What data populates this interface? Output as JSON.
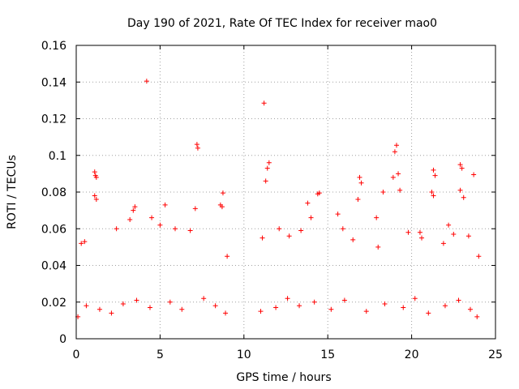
{
  "chart_data": {
    "type": "scatter",
    "title": "Day 190 of 2021, Rate Of TEC Index for receiver mao0",
    "xlabel": "GPS time / hours",
    "ylabel": "ROTI / TECUs",
    "xlim": [
      0,
      25
    ],
    "ylim": [
      0,
      0.16
    ],
    "xticks": [
      0,
      5,
      10,
      15,
      20,
      25
    ],
    "yticks": [
      0,
      0.02,
      0.04,
      0.06,
      0.08,
      0.1,
      0.12,
      0.14,
      0.16
    ],
    "xtick_labels": [
      "0",
      "5",
      "10",
      "15",
      "20",
      "25"
    ],
    "ytick_labels": [
      "0",
      "0.02",
      "0.04",
      "0.06",
      "0.08",
      "0.1",
      "0.12",
      "0.14",
      "0.16"
    ],
    "grid": true,
    "marker": "+",
    "color": "#ff0000",
    "series": [
      {
        "name": "ROTI",
        "points": [
          [
            4.2,
            0.1405
          ],
          [
            11.2,
            0.1285
          ],
          [
            7.2,
            0.106
          ],
          [
            7.25,
            0.104
          ],
          [
            19.1,
            0.1055
          ],
          [
            19.0,
            0.102
          ],
          [
            1.1,
            0.091
          ],
          [
            1.15,
            0.089
          ],
          [
            1.2,
            0.088
          ],
          [
            11.5,
            0.096
          ],
          [
            11.4,
            0.093
          ],
          [
            11.3,
            0.086
          ],
          [
            16.9,
            0.088
          ],
          [
            17.0,
            0.085
          ],
          [
            21.3,
            0.092
          ],
          [
            21.4,
            0.089
          ],
          [
            22.9,
            0.095
          ],
          [
            23.0,
            0.093
          ],
          [
            23.7,
            0.0895
          ],
          [
            18.9,
            0.088
          ],
          [
            19.2,
            0.09
          ],
          [
            14.5,
            0.0795
          ],
          [
            14.4,
            0.079
          ],
          [
            8.75,
            0.0795
          ],
          [
            1.1,
            0.078
          ],
          [
            1.2,
            0.076
          ],
          [
            5.3,
            0.073
          ],
          [
            3.5,
            0.072
          ],
          [
            3.4,
            0.07
          ],
          [
            7.1,
            0.071
          ],
          [
            8.6,
            0.073
          ],
          [
            8.7,
            0.072
          ],
          [
            13.8,
            0.074
          ],
          [
            16.8,
            0.076
          ],
          [
            18.3,
            0.08
          ],
          [
            19.3,
            0.081
          ],
          [
            21.2,
            0.08
          ],
          [
            21.3,
            0.078
          ],
          [
            22.9,
            0.081
          ],
          [
            23.1,
            0.077
          ],
          [
            15.6,
            0.068
          ],
          [
            17.9,
            0.066
          ],
          [
            20.5,
            0.058
          ],
          [
            22.2,
            0.062
          ],
          [
            24.0,
            0.045
          ],
          [
            0.3,
            0.052
          ],
          [
            0.5,
            0.053
          ],
          [
            2.4,
            0.06
          ],
          [
            3.2,
            0.065
          ],
          [
            4.5,
            0.066
          ],
          [
            5.0,
            0.062
          ],
          [
            5.9,
            0.06
          ],
          [
            6.8,
            0.059
          ],
          [
            9.0,
            0.045
          ],
          [
            11.1,
            0.055
          ],
          [
            12.1,
            0.06
          ],
          [
            12.7,
            0.056
          ],
          [
            13.4,
            0.059
          ],
          [
            14.0,
            0.066
          ],
          [
            15.9,
            0.06
          ],
          [
            16.5,
            0.054
          ],
          [
            18.0,
            0.05
          ],
          [
            19.8,
            0.058
          ],
          [
            20.6,
            0.055
          ],
          [
            21.9,
            0.052
          ],
          [
            22.5,
            0.057
          ],
          [
            23.4,
            0.056
          ],
          [
            0.1,
            0.012
          ],
          [
            0.6,
            0.018
          ],
          [
            1.4,
            0.016
          ],
          [
            2.1,
            0.014
          ],
          [
            2.8,
            0.019
          ],
          [
            3.6,
            0.021
          ],
          [
            4.4,
            0.017
          ],
          [
            5.6,
            0.02
          ],
          [
            6.3,
            0.016
          ],
          [
            7.6,
            0.022
          ],
          [
            8.3,
            0.018
          ],
          [
            8.9,
            0.014
          ],
          [
            11.0,
            0.015
          ],
          [
            11.9,
            0.017
          ],
          [
            12.6,
            0.022
          ],
          [
            13.3,
            0.018
          ],
          [
            14.2,
            0.02
          ],
          [
            15.2,
            0.016
          ],
          [
            16.0,
            0.021
          ],
          [
            17.3,
            0.015
          ],
          [
            18.4,
            0.019
          ],
          [
            19.5,
            0.017
          ],
          [
            20.2,
            0.022
          ],
          [
            21.0,
            0.014
          ],
          [
            22.0,
            0.018
          ],
          [
            22.8,
            0.021
          ],
          [
            23.5,
            0.016
          ],
          [
            23.9,
            0.012
          ]
        ]
      }
    ]
  }
}
